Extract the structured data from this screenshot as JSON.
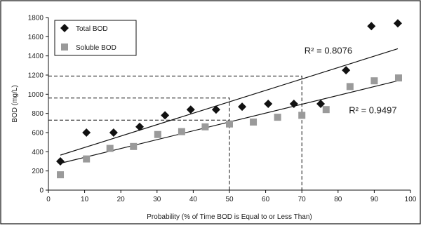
{
  "chart_data": {
    "type": "scatter",
    "xlabel": "Probability (% of Time BOD is Equal to or Less Than)",
    "ylabel": "BOD (mg/L)",
    "xlim": [
      0,
      100
    ],
    "ylim": [
      0,
      1800
    ],
    "xticks": [
      0,
      10,
      20,
      30,
      40,
      50,
      60,
      70,
      80,
      90,
      100
    ],
    "yticks": [
      0,
      200,
      400,
      600,
      800,
      1000,
      1200,
      1400,
      1600,
      1800
    ],
    "xtick_labels": [
      "0",
      "10",
      "20",
      "30",
      "40",
      "50",
      "60",
      "70",
      "80",
      "90",
      "100"
    ],
    "ytick_labels": [
      "0",
      "200",
      "400",
      "600",
      "800",
      "1000",
      "1200",
      "1400",
      "1600",
      "1800"
    ],
    "grid": false,
    "legend_position": "top-left",
    "series": [
      {
        "name": "Total BOD",
        "marker": "diamond",
        "color": "#111111",
        "x": [
          3.3,
          10.5,
          18,
          25.2,
          32.2,
          39.3,
          46.3,
          53.5,
          60.7,
          67.8,
          75.2,
          82.2,
          89.2,
          96.5
        ],
        "y": [
          300,
          600,
          600,
          660,
          780,
          840,
          840,
          870,
          900,
          900,
          900,
          1250,
          1710,
          1740
        ],
        "trendline": {
          "x": [
            3.3,
            96.5
          ],
          "y": [
            365,
            1475
          ],
          "r2_label": "R² = 0.8076"
        }
      },
      {
        "name": "Soluble BOD",
        "marker": "square",
        "color": "#9a9a9a",
        "x": [
          3.3,
          10.5,
          17,
          23.5,
          30.2,
          36.8,
          43.3,
          50,
          56.6,
          63.3,
          70,
          76.7,
          83.3,
          90,
          96.7
        ],
        "y": [
          160,
          325,
          435,
          455,
          580,
          610,
          660,
          690,
          710,
          760,
          780,
          840,
          1080,
          1140,
          1170
        ],
        "trendline": {
          "x": [
            3.3,
            96.5
          ],
          "y": [
            280,
            1140
          ],
          "r2_label": "R² = 0.9497"
        }
      }
    ],
    "reference_lines": [
      {
        "from": [
          0,
          960
        ],
        "corner": [
          50,
          960
        ],
        "to": [
          50,
          0
        ]
      },
      {
        "from": [
          0,
          730
        ],
        "corner": [
          50,
          730
        ]
      },
      {
        "from": [
          0,
          1190
        ],
        "corner": [
          70,
          1190
        ],
        "to": [
          70,
          0
        ]
      }
    ]
  }
}
